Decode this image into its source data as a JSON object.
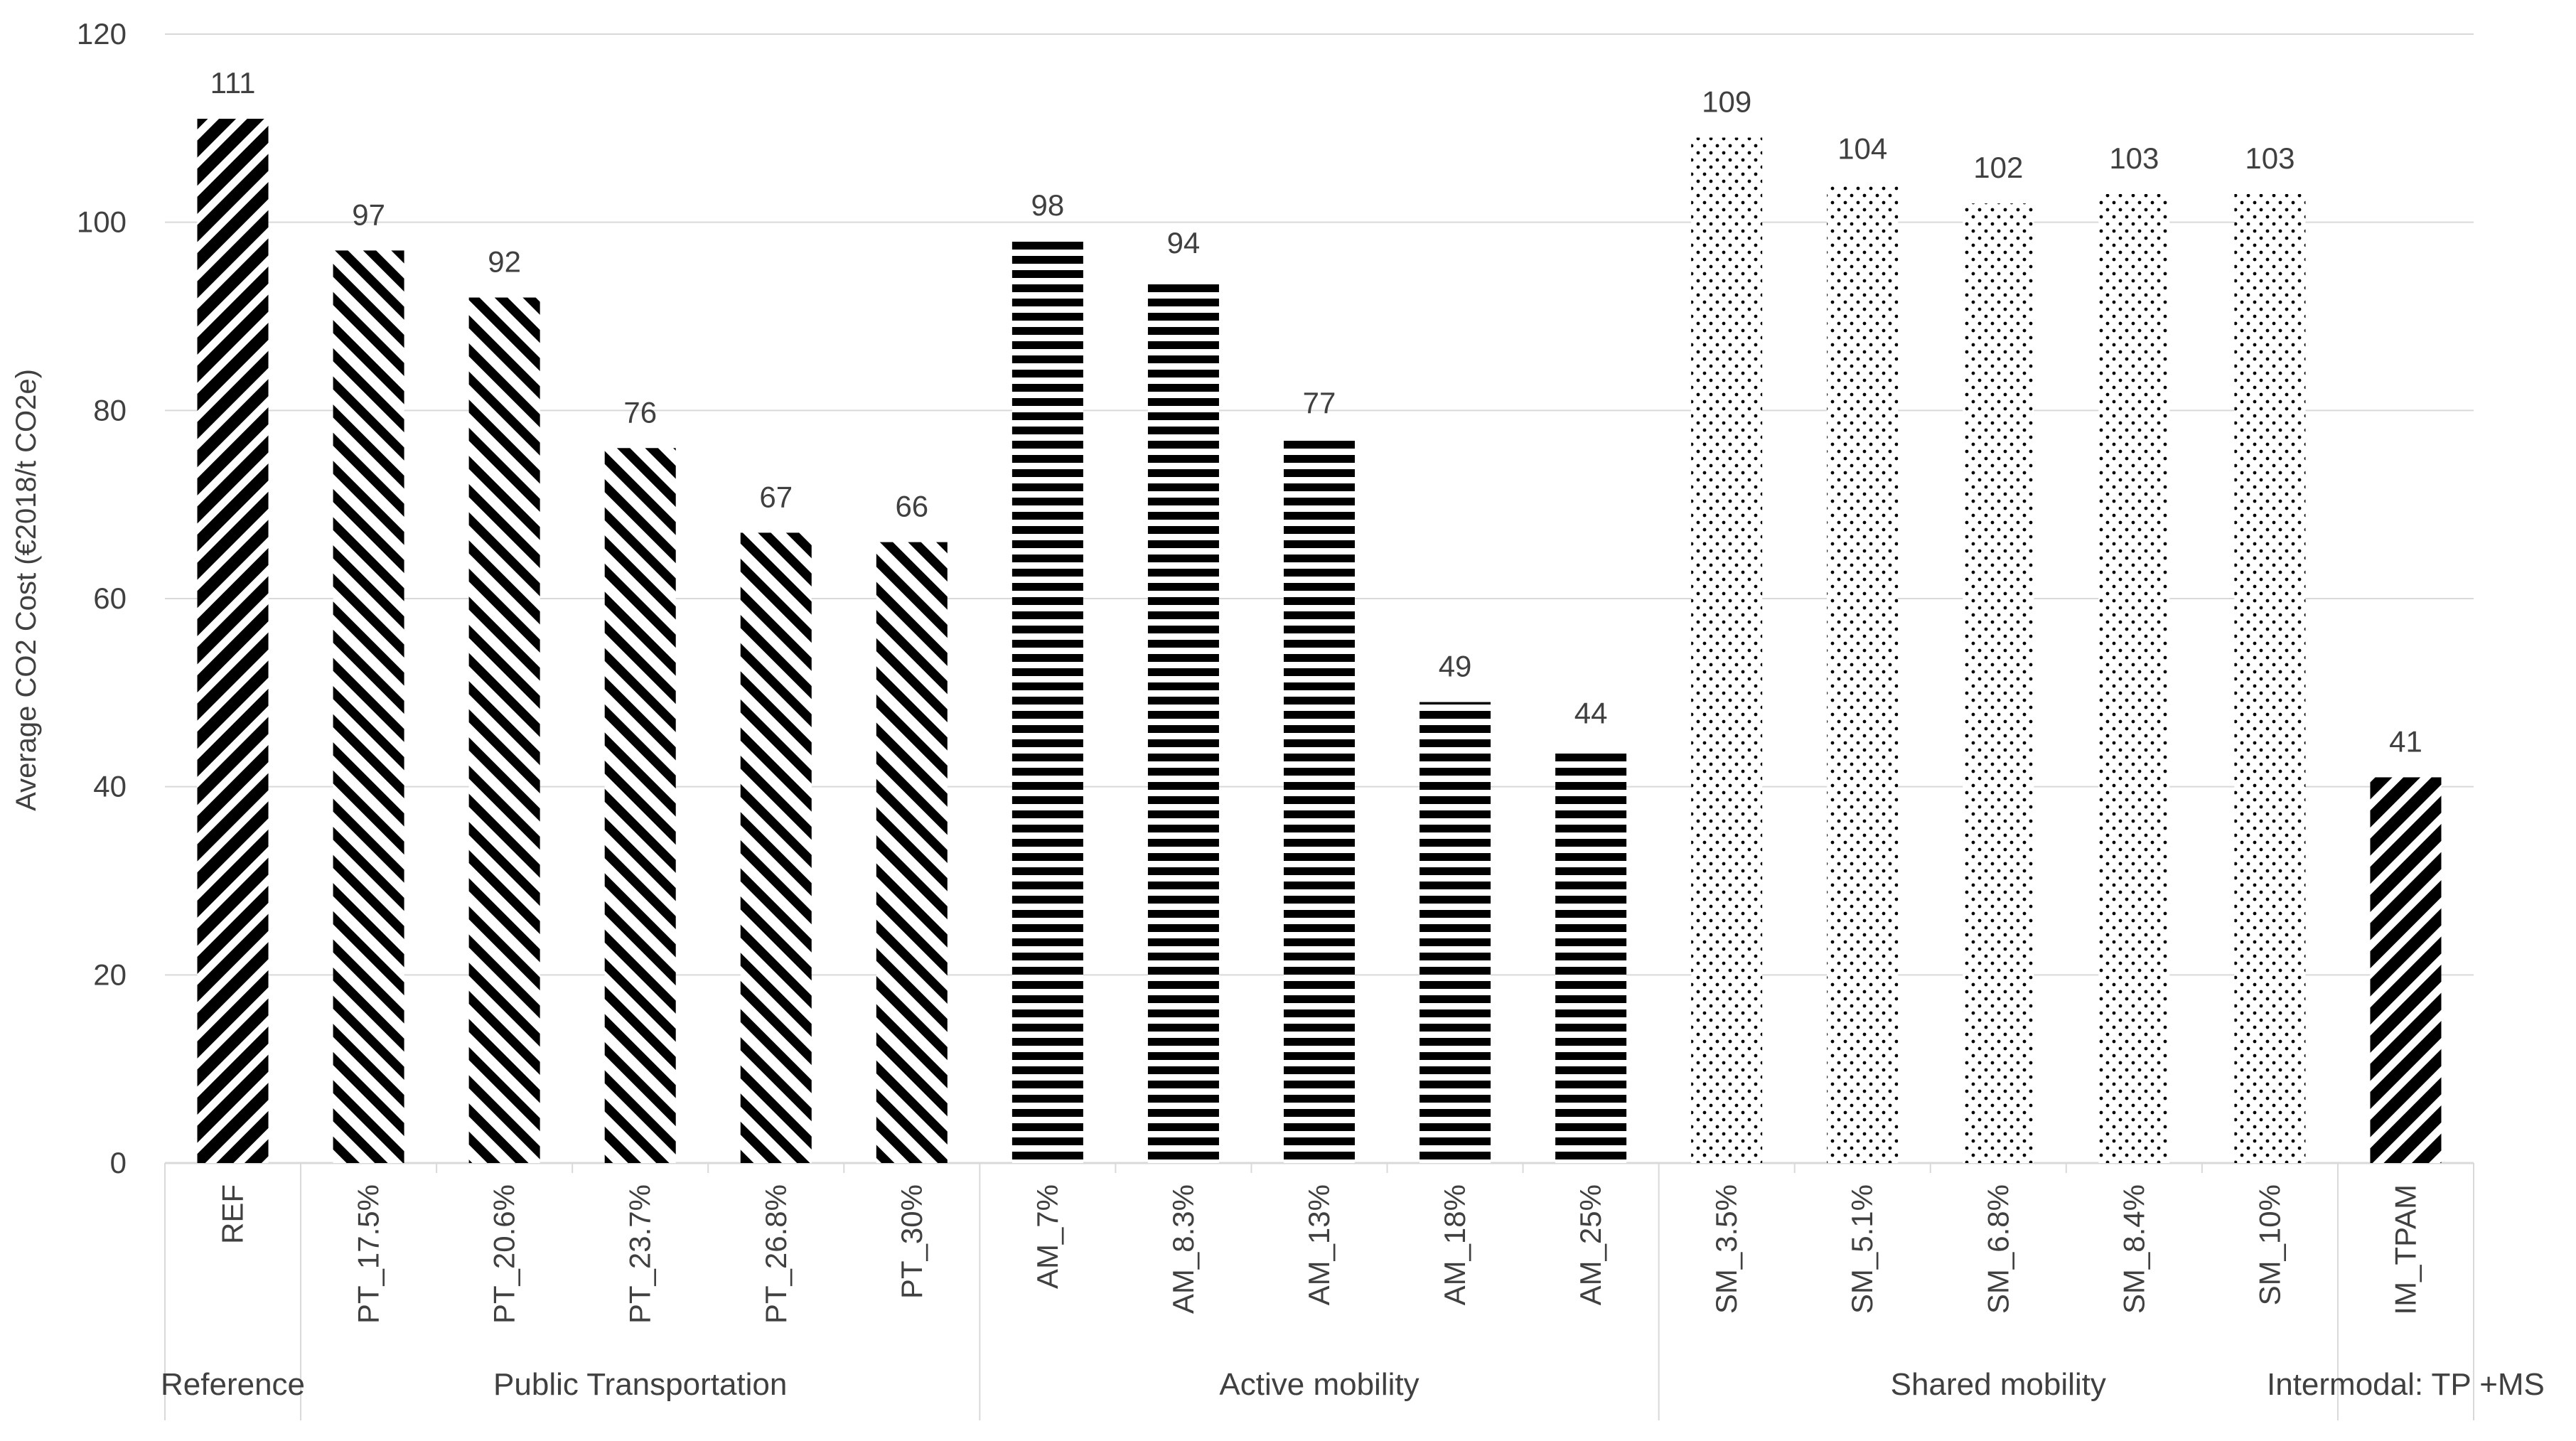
{
  "chart_data": {
    "type": "bar",
    "title": "",
    "xlabel": "",
    "ylabel": "Average CO2 Cost (€2018/t CO2e)",
    "ylim": [
      0,
      120
    ],
    "yticks": [
      0,
      20,
      40,
      60,
      80,
      100,
      120
    ],
    "grid": true,
    "legend": "none",
    "categories": [
      "REF",
      "PT_17.5%",
      "PT_20.6%",
      "PT_23.7%",
      "PT_26.8%",
      "PT_30%",
      "AM_7%",
      "AM_8.3%",
      "AM_13%",
      "AM_18%",
      "AM_25%",
      "SM_3.5%",
      "SM_5.1%",
      "SM_6.8%",
      "SM_8.4%",
      "SM_10%",
      "IM_TPAM"
    ],
    "values": [
      111,
      97,
      92,
      76,
      67,
      66,
      98,
      94,
      77,
      49,
      44,
      109,
      104,
      102,
      103,
      103,
      41
    ],
    "data_labels": [
      "111",
      "97",
      "92",
      "76",
      "67",
      "66",
      "98",
      "94",
      "77",
      "49",
      "44",
      "109",
      "104",
      "102",
      "103",
      "103",
      "41"
    ],
    "groups": [
      {
        "name": "Reference",
        "pattern": "diag-wide",
        "categories": [
          "REF"
        ]
      },
      {
        "name": "Public Transportation",
        "pattern": "diag-thin",
        "categories": [
          "PT_17.5%",
          "PT_20.6%",
          "PT_23.7%",
          "PT_26.8%",
          "PT_30%"
        ]
      },
      {
        "name": "Active mobility",
        "pattern": "horizontal",
        "categories": [
          "AM_7%",
          "AM_8.3%",
          "AM_13%",
          "AM_18%",
          "AM_25%"
        ]
      },
      {
        "name": "Shared mobility",
        "pattern": "dots",
        "categories": [
          "SM_3.5%",
          "SM_5.1%",
          "SM_6.8%",
          "SM_8.4%",
          "SM_10%"
        ]
      },
      {
        "name": "Intermodal: TP +MS",
        "pattern": "diag-wide",
        "categories": [
          "IM_TPAM"
        ]
      }
    ],
    "colors": {
      "bar": "#000000",
      "grid": "#d9d9d9",
      "text": "#404040",
      "background": "#ffffff"
    }
  }
}
